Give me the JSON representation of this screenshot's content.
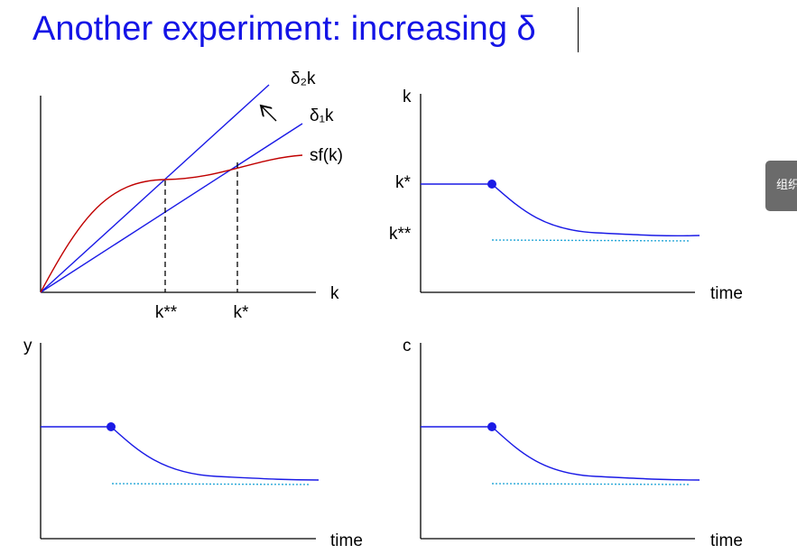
{
  "title": "Another experiment: increasing δ",
  "side_tab": {
    "label": "组织"
  },
  "colors": {
    "title": "#1414e6",
    "line": "#1a1ae6",
    "production": "#c00000",
    "new_steady_state": "#28a8d8",
    "axis": "#000000"
  },
  "panels": {
    "solow": {
      "x_axis_label": "k",
      "curves": {
        "depreciation_new": "δ₂k",
        "depreciation_old": "δ₁k",
        "savings": "sf(k)"
      },
      "x_ticks": {
        "k_new": "k**",
        "k_old": "k*"
      }
    },
    "k_time": {
      "y_axis_label": "k",
      "x_axis_label": "time",
      "y_ticks": {
        "k_old": "k*",
        "k_new": "k**"
      }
    },
    "y_time": {
      "y_axis_label": "y",
      "x_axis_label": "time"
    },
    "c_time": {
      "y_axis_label": "c",
      "x_axis_label": "time"
    }
  }
}
